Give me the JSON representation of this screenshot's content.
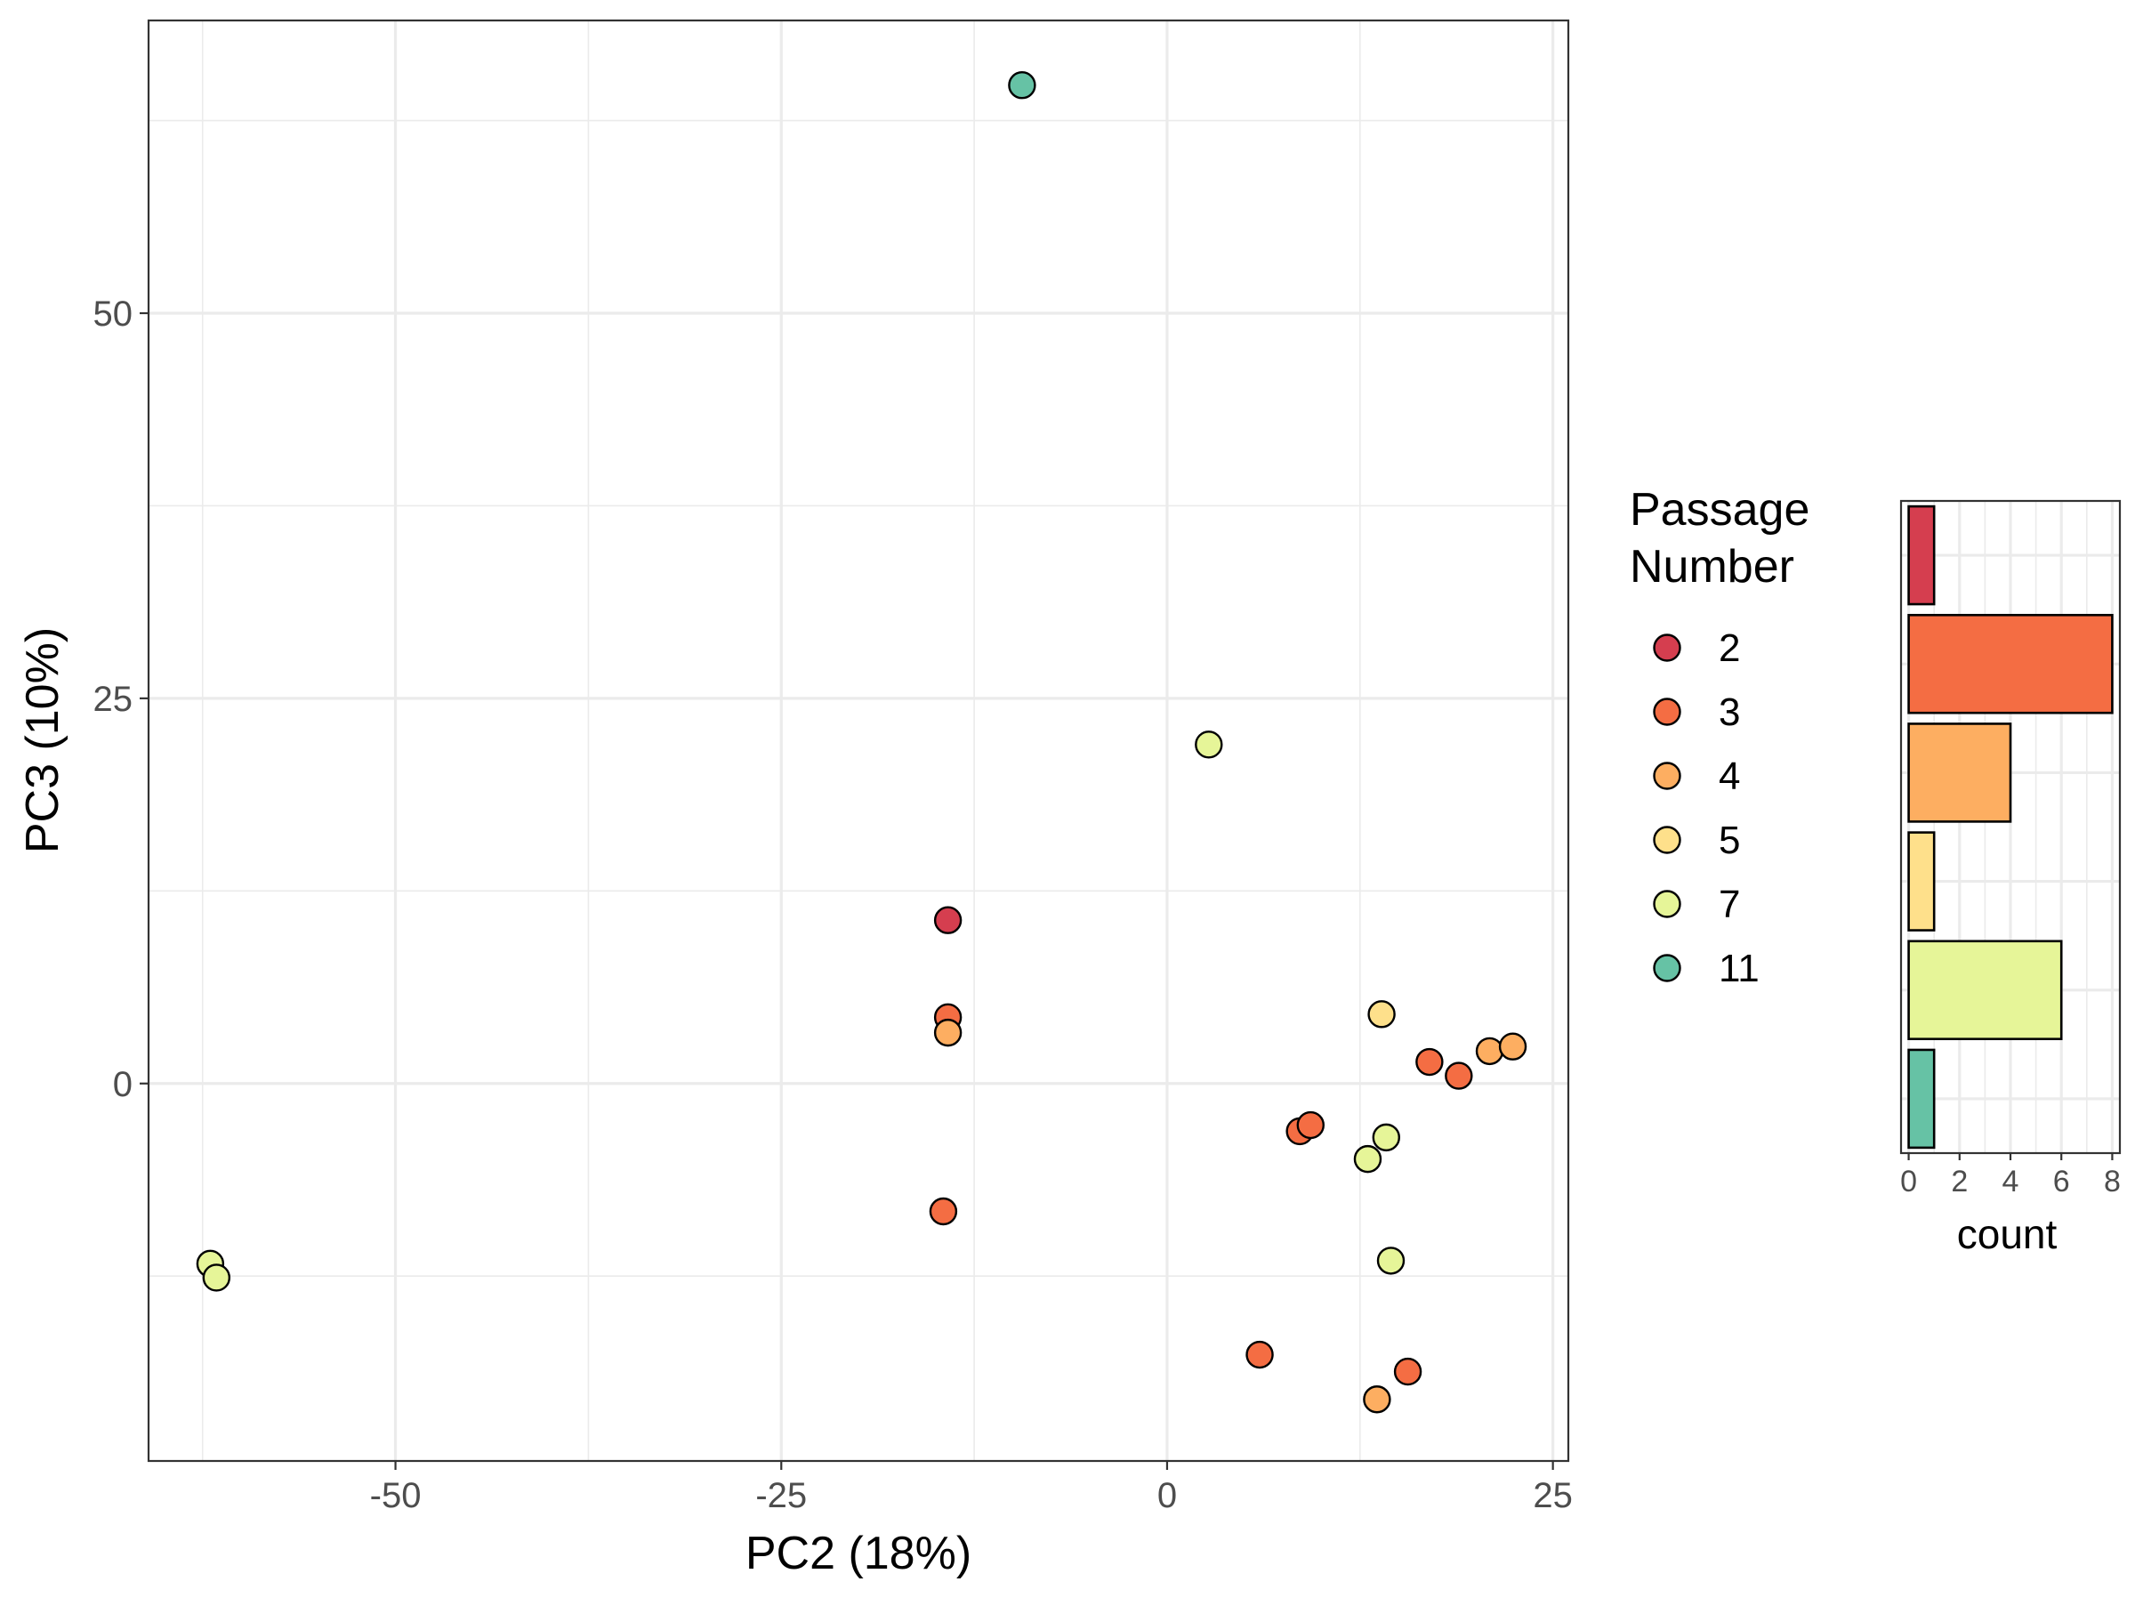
{
  "chart_data": [
    {
      "type": "scatter",
      "xlabel": "PC2 (18%)",
      "ylabel": "PC3 (10%)",
      "xlim": [
        -66,
        26
      ],
      "ylim": [
        -24.5,
        69
      ],
      "xticks": [
        -50,
        -25,
        0,
        25
      ],
      "yticks": [
        0,
        25,
        50
      ],
      "xtick_labels": [
        "-50",
        "-25",
        "0",
        "25"
      ],
      "ytick_labels": [
        "0",
        "25",
        "50"
      ],
      "grid": true,
      "legend": {
        "title_lines": [
          "Passage",
          "Number"
        ],
        "position": "right",
        "entries": [
          {
            "label": "2",
            "color": "#D53E4F"
          },
          {
            "label": "3",
            "color": "#F46D43"
          },
          {
            "label": "4",
            "color": "#FDAE61"
          },
          {
            "label": "5",
            "color": "#FEE08B"
          },
          {
            "label": "7",
            "color": "#E6F598"
          },
          {
            "label": "11",
            "color": "#66C2A5"
          }
        ]
      },
      "series": [
        {
          "name": "2",
          "color": "#D53E4F",
          "points": [
            [
              -14.2,
              10.6
            ]
          ]
        },
        {
          "name": "3",
          "color": "#F46D43",
          "points": [
            [
              -14.2,
              4.3
            ],
            [
              -14.5,
              -8.3
            ],
            [
              8.6,
              -3.1
            ],
            [
              9.3,
              -2.7
            ],
            [
              17.0,
              1.4
            ],
            [
              18.9,
              0.5
            ],
            [
              6.0,
              -17.6
            ],
            [
              15.6,
              -18.7
            ]
          ]
        },
        {
          "name": "4",
          "color": "#FDAE61",
          "points": [
            [
              -14.2,
              3.3
            ],
            [
              20.9,
              2.1
            ],
            [
              22.4,
              2.4
            ],
            [
              13.6,
              -20.5
            ]
          ]
        },
        {
          "name": "5",
          "color": "#FEE08B",
          "points": [
            [
              13.9,
              4.5
            ]
          ]
        },
        {
          "name": "7",
          "color": "#E6F598",
          "points": [
            [
              2.7,
              22.0
            ],
            [
              -62.0,
              -11.7
            ],
            [
              -61.6,
              -12.6
            ],
            [
              14.2,
              -3.5
            ],
            [
              13.0,
              -4.9
            ],
            [
              14.5,
              -11.5
            ]
          ]
        },
        {
          "name": "11",
          "color": "#66C2A5",
          "points": [
            [
              -9.4,
              64.8
            ]
          ]
        }
      ]
    },
    {
      "type": "bar",
      "orientation": "horizontal",
      "categories": [
        "2",
        "3",
        "4",
        "5",
        "7",
        "11"
      ],
      "values": [
        1,
        8,
        4,
        1,
        6,
        1
      ],
      "colors": [
        "#D53E4F",
        "#F46D43",
        "#FDAE61",
        "#FEE08B",
        "#E6F598",
        "#66C2A5"
      ],
      "xlabel": "count",
      "xlim": [
        -0.3,
        8.3
      ],
      "xticks": [
        0,
        2,
        4,
        6,
        8
      ],
      "xtick_labels": [
        "0",
        "2",
        "4",
        "6",
        "8"
      ],
      "grid": true
    }
  ]
}
